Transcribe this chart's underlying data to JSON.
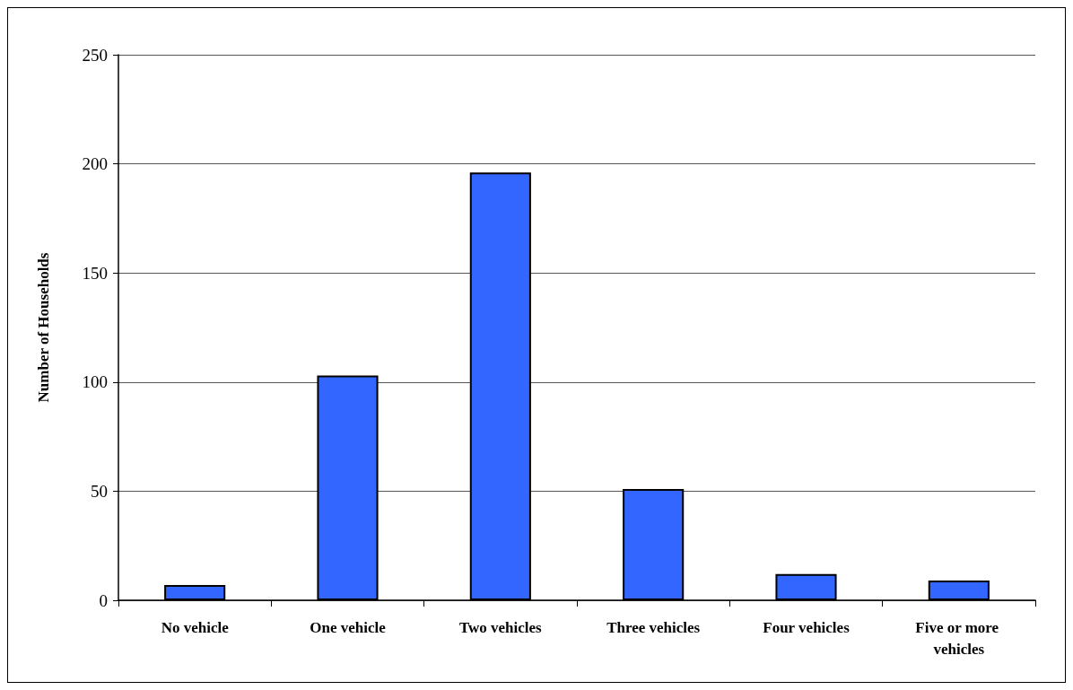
{
  "chart_data": {
    "type": "bar",
    "ylabel": "Number of Households",
    "categories": [
      "No vehicle",
      "One vehicle",
      "Two vehicles",
      "Three vehicles",
      "Four vehicles",
      "Five or more vehicles"
    ],
    "values": [
      7,
      103,
      196,
      51,
      12,
      9
    ],
    "color": "#3366ff",
    "ylim": [
      0,
      250
    ],
    "yticks": [
      0,
      50,
      100,
      150,
      200,
      250
    ],
    "grid": "y"
  }
}
